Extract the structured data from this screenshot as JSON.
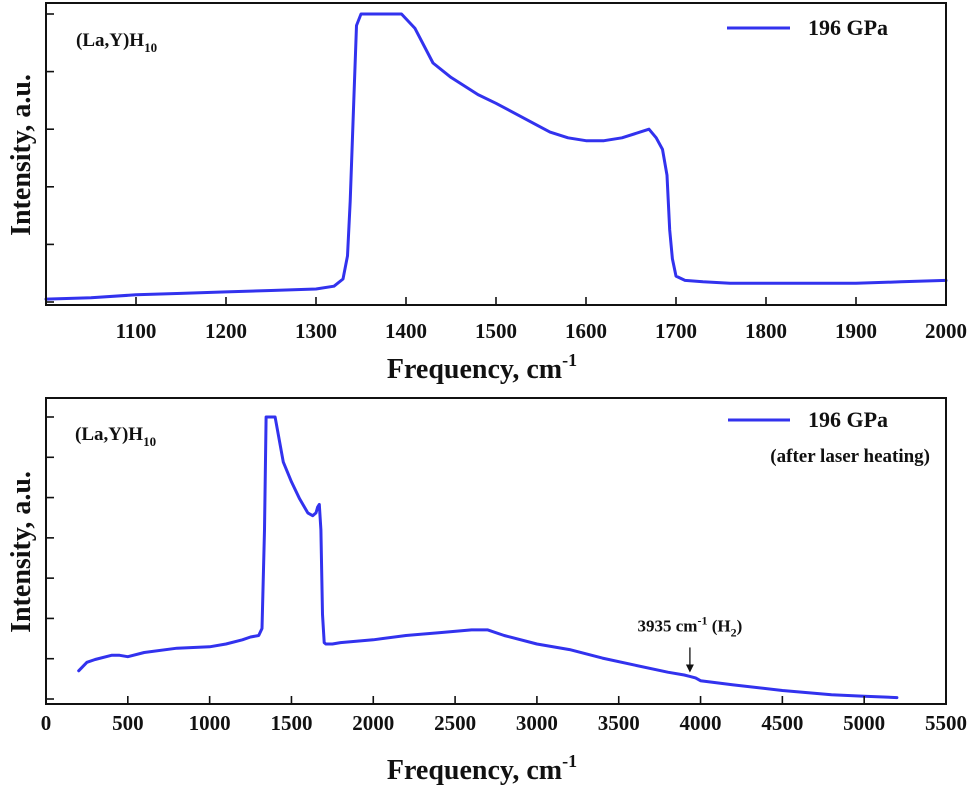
{
  "colors": {
    "line": "#3232ee",
    "axis": "#111111",
    "background": "#ffffff"
  },
  "chart_data": [
    {
      "type": "line",
      "title": "",
      "xlabel": "Frequency, cm",
      "xlabel_sup": "-1",
      "ylabel": "Intensity, a.u.",
      "xlim": [
        1000,
        2000
      ],
      "ylim": [
        0,
        100
      ],
      "xticks": [
        1100,
        1200,
        1300,
        1400,
        1500,
        1600,
        1700,
        1800,
        1900,
        2000
      ],
      "y_tick_labels_shown": false,
      "grid": false,
      "legend_position": "top-right",
      "sample_label": {
        "main": "(La,Y)H",
        "sub": "10"
      },
      "series": [
        {
          "name": "196 GPa",
          "name_line2": "",
          "x": [
            1000,
            1050,
            1100,
            1150,
            1200,
            1250,
            1300,
            1320,
            1330,
            1335,
            1338,
            1342,
            1345,
            1350,
            1360,
            1380,
            1395,
            1410,
            1430,
            1450,
            1480,
            1500,
            1530,
            1560,
            1580,
            1600,
            1620,
            1640,
            1660,
            1670,
            1678,
            1685,
            1690,
            1693,
            1696,
            1700,
            1710,
            1730,
            1760,
            1800,
            1850,
            1900,
            1950,
            2000
          ],
          "y": [
            1,
            1.5,
            2.5,
            3,
            3.5,
            4,
            4.5,
            5.5,
            8,
            16,
            35,
            70,
            96,
            100,
            100,
            100,
            100,
            95,
            83,
            78,
            72,
            69,
            64,
            59,
            57,
            56,
            56,
            57,
            59,
            60,
            57,
            53,
            44,
            25,
            15,
            9,
            7.5,
            7,
            6.5,
            6.5,
            6.5,
            6.5,
            7,
            7.5
          ]
        }
      ]
    },
    {
      "type": "line",
      "title": "",
      "xlabel": "Frequency, cm",
      "xlabel_sup": "-1",
      "ylabel": "Intensity, a.u.",
      "xlim": [
        0,
        5500
      ],
      "ylim": [
        0,
        100
      ],
      "xticks": [
        0,
        500,
        1000,
        1500,
        2000,
        2500,
        3000,
        3500,
        4000,
        4500,
        5000,
        5500
      ],
      "y_tick_labels_shown": false,
      "grid": false,
      "legend_position": "top-right",
      "sample_label": {
        "main": "(La,Y)H",
        "sub": "10"
      },
      "series": [
        {
          "name": "196 GPa",
          "name_line2": "(after laser heating)",
          "x": [
            200,
            250,
            300,
            400,
            450,
            500,
            600,
            800,
            1000,
            1100,
            1200,
            1250,
            1300,
            1320,
            1335,
            1345,
            1360,
            1400,
            1450,
            1500,
            1550,
            1600,
            1630,
            1650,
            1660,
            1670,
            1680,
            1690,
            1700,
            1710,
            1720,
            1750,
            1800,
            2000,
            2200,
            2400,
            2600,
            2700,
            2800,
            3000,
            3200,
            3400,
            3600,
            3800,
            3900,
            3935,
            3970,
            4000,
            4200,
            4500,
            4800,
            5000,
            5200
          ],
          "y": [
            10,
            13,
            14,
            15.5,
            15.5,
            15,
            16.5,
            18,
            18.5,
            19.5,
            21,
            22,
            22.5,
            25,
            60,
            100,
            100,
            100,
            84,
            77,
            71,
            66,
            65,
            66,
            68,
            69,
            60,
            30,
            20,
            19.5,
            19.5,
            19.5,
            20,
            21,
            22.5,
            23.5,
            24.5,
            24.5,
            22.5,
            19.5,
            17.5,
            14.5,
            12,
            9.5,
            8.5,
            8,
            7.5,
            6.5,
            5,
            3,
            1.5,
            1,
            0.5
          ]
        }
      ],
      "annotations": [
        {
          "x": 3935,
          "text_pre": "3935 cm",
          "text_sup": "-1",
          "text_mid": " (H",
          "text_sub": "2",
          "text_post": ")"
        }
      ]
    }
  ]
}
